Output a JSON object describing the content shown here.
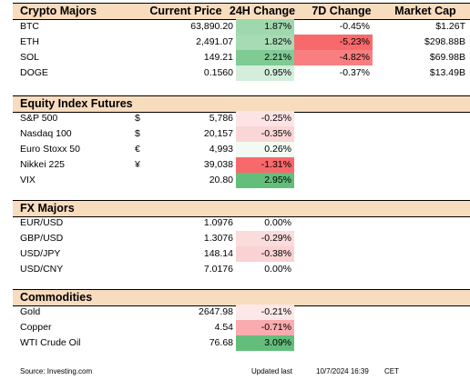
{
  "colors": {
    "header_bg": "#f8dcbe",
    "pos_strong": "#63be7b",
    "pos_mid": "#9fd8ad",
    "pos_light": "#d4eedb",
    "neg_strong": "#f8696b",
    "neg_mid": "#f9a7a9",
    "neg_light": "#fbd9da"
  },
  "crypto": {
    "header": {
      "title": "Crypto Majors",
      "price": "Current Price",
      "d24": "24H Change",
      "d7": "7D Change",
      "mcap": "Market Cap"
    },
    "rows": [
      {
        "name": "BTC",
        "price": "63,890.20",
        "d24": "1.87%",
        "d7": "-0.45%",
        "mcap": "$1.26T",
        "d24_color": "#9fd8ad",
        "d7_color": ""
      },
      {
        "name": "ETH",
        "price": "2,491.07",
        "d24": "1.82%",
        "d7": "-5.23%",
        "mcap": "$298.88B",
        "d24_color": "#a7dbb4",
        "d7_color": "#f8696b"
      },
      {
        "name": "SOL",
        "price": "149.21",
        "d24": "2.21%",
        "d7": "-4.82%",
        "mcap": "$69.98B",
        "d24_color": "#7fcb94",
        "d7_color": "#f87e80"
      },
      {
        "name": "DOGE",
        "price": "0.1560",
        "d24": "0.95%",
        "d7": "-0.37%",
        "mcap": "$13.49B",
        "d24_color": "#d4eedb",
        "d7_color": ""
      }
    ]
  },
  "equity": {
    "title": "Equity Index Futures",
    "rows": [
      {
        "name": "S&P 500",
        "sym": "$",
        "price": "5,786",
        "d24": "-0.25%",
        "d24_color": "#fce4e5"
      },
      {
        "name": "Nasdaq 100",
        "sym": "$",
        "price": "20,157",
        "d24": "-0.35%",
        "d24_color": "#fbd6d7"
      },
      {
        "name": "Euro Stoxx 50",
        "sym": "€",
        "price": "4,993",
        "d24": "0.26%",
        "d24_color": "#f2faf4"
      },
      {
        "name": "Nikkei 225",
        "sym": "¥",
        "price": "39,038",
        "d24": "-1.31%",
        "d24_color": "#f8696b"
      },
      {
        "name": "VIX",
        "sym": "",
        "price": "20.80",
        "d24": "2.95%",
        "d24_color": "#63be7b"
      }
    ]
  },
  "fx": {
    "title": "FX Majors",
    "rows": [
      {
        "name": "EUR/USD",
        "price": "1.0976",
        "d24": "0.00%",
        "d24_color": ""
      },
      {
        "name": "GBP/USD",
        "price": "1.3076",
        "d24": "-0.29%",
        "d24_color": "#fbdcdd"
      },
      {
        "name": "USD/JPY",
        "price": "148.14",
        "d24": "-0.38%",
        "d24_color": "#fbd2d3"
      },
      {
        "name": "USD/CNY",
        "price": "7.0176",
        "d24": "0.00%",
        "d24_color": ""
      }
    ]
  },
  "commodities": {
    "title": "Commodities",
    "rows": [
      {
        "name": "Gold",
        "price": "2647.98",
        "d24": "-0.21%",
        "d24_color": "#fce8e9"
      },
      {
        "name": "Copper",
        "price": "4.54",
        "d24": "-0.71%",
        "d24_color": "#f9abad"
      },
      {
        "name": "WTI Crude Oil",
        "price": "76.68",
        "d24": "3.09%",
        "d24_color": "#63be7b"
      }
    ]
  },
  "footer": {
    "source": "Source: Investing.com",
    "updated": "Updated last",
    "timestamp": "10/7/2024 16:39",
    "tz": "CET"
  }
}
